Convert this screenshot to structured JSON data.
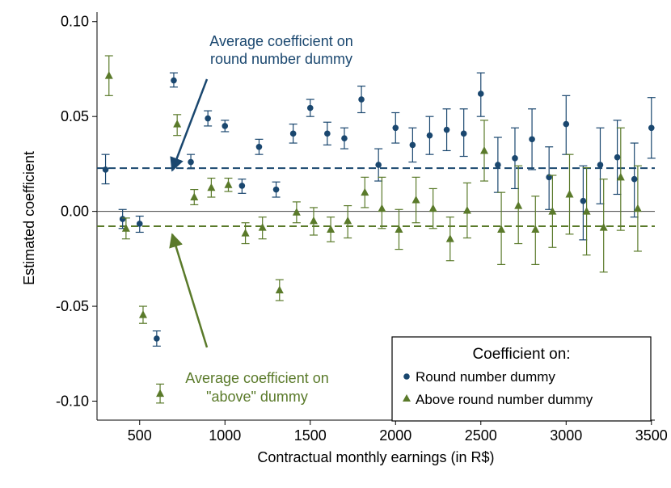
{
  "chart_data": {
    "type": "scatter",
    "xlabel": "Contractual monthly earnings (in R$)",
    "ylabel": "Estimated coefficient",
    "xlim": [
      250,
      3520
    ],
    "ylim": [
      -0.11,
      0.105
    ],
    "x_ticks": [
      500,
      1000,
      1500,
      2000,
      2500,
      3000,
      3500
    ],
    "x_tick_labels": [
      "500",
      "1000",
      "1500",
      "2000",
      "2500",
      "3000",
      "3500"
    ],
    "y_ticks": [
      0.1,
      0.05,
      0.0,
      -0.05,
      -0.1
    ],
    "y_tick_labels": [
      "0.10",
      "0.05",
      "0.00",
      "-0.05",
      "-0.10"
    ],
    "zero_line": 0,
    "colors": {
      "round": "#1a476f",
      "above": "#5a7a2a"
    },
    "series": [
      {
        "name": "Round number dummy",
        "marker": "circle",
        "average": 0.0228,
        "points": [
          {
            "x": 300,
            "y": 0.022,
            "lo": 0.0145,
            "hi": 0.03
          },
          {
            "x": 400,
            "y": -0.004,
            "lo": -0.009,
            "hi": 0.001
          },
          {
            "x": 500,
            "y": -0.0065,
            "lo": -0.011,
            "hi": -0.0025
          },
          {
            "x": 600,
            "y": -0.067,
            "lo": -0.071,
            "hi": -0.063
          },
          {
            "x": 700,
            "y": 0.069,
            "lo": 0.0655,
            "hi": 0.073
          },
          {
            "x": 800,
            "y": 0.026,
            "lo": 0.0225,
            "hi": 0.03
          },
          {
            "x": 900,
            "y": 0.049,
            "lo": 0.045,
            "hi": 0.053
          },
          {
            "x": 1000,
            "y": 0.045,
            "lo": 0.042,
            "hi": 0.048
          },
          {
            "x": 1100,
            "y": 0.0135,
            "lo": 0.0095,
            "hi": 0.017
          },
          {
            "x": 1200,
            "y": 0.034,
            "lo": 0.03,
            "hi": 0.038
          },
          {
            "x": 1300,
            "y": 0.0115,
            "lo": 0.0075,
            "hi": 0.0155
          },
          {
            "x": 1400,
            "y": 0.041,
            "lo": 0.036,
            "hi": 0.046
          },
          {
            "x": 1500,
            "y": 0.0545,
            "lo": 0.05,
            "hi": 0.059
          },
          {
            "x": 1600,
            "y": 0.041,
            "lo": 0.035,
            "hi": 0.047
          },
          {
            "x": 1700,
            "y": 0.0385,
            "lo": 0.033,
            "hi": 0.044
          },
          {
            "x": 1800,
            "y": 0.059,
            "lo": 0.052,
            "hi": 0.066
          },
          {
            "x": 1900,
            "y": 0.0245,
            "lo": 0.016,
            "hi": 0.033
          },
          {
            "x": 2000,
            "y": 0.044,
            "lo": 0.036,
            "hi": 0.052
          },
          {
            "x": 2100,
            "y": 0.035,
            "lo": 0.026,
            "hi": 0.044
          },
          {
            "x": 2200,
            "y": 0.04,
            "lo": 0.03,
            "hi": 0.05
          },
          {
            "x": 2300,
            "y": 0.043,
            "lo": 0.032,
            "hi": 0.054
          },
          {
            "x": 2400,
            "y": 0.041,
            "lo": 0.029,
            "hi": 0.054
          },
          {
            "x": 2500,
            "y": 0.062,
            "lo": 0.05,
            "hi": 0.073
          },
          {
            "x": 2600,
            "y": 0.0245,
            "lo": 0.01,
            "hi": 0.039
          },
          {
            "x": 2700,
            "y": 0.028,
            "lo": 0.012,
            "hi": 0.044
          },
          {
            "x": 2800,
            "y": 0.038,
            "lo": 0.022,
            "hi": 0.054
          },
          {
            "x": 2900,
            "y": 0.018,
            "lo": 0.001,
            "hi": 0.034
          },
          {
            "x": 3000,
            "y": 0.046,
            "lo": 0.03,
            "hi": 0.061
          },
          {
            "x": 3100,
            "y": 0.0055,
            "lo": -0.015,
            "hi": 0.024
          },
          {
            "x": 3200,
            "y": 0.0245,
            "lo": 0.004,
            "hi": 0.044
          },
          {
            "x": 3300,
            "y": 0.0285,
            "lo": 0.009,
            "hi": 0.048
          },
          {
            "x": 3400,
            "y": 0.017,
            "lo": -0.003,
            "hi": 0.036
          },
          {
            "x": 3500,
            "y": 0.044,
            "lo": 0.028,
            "hi": 0.06
          }
        ]
      },
      {
        "name": "Above round number dummy",
        "marker": "triangle",
        "average": -0.0078,
        "points": [
          {
            "x": 320,
            "y": 0.0715,
            "lo": 0.061,
            "hi": 0.082
          },
          {
            "x": 420,
            "y": -0.009,
            "lo": -0.0145,
            "hi": -0.0035
          },
          {
            "x": 520,
            "y": -0.0545,
            "lo": -0.059,
            "hi": -0.05
          },
          {
            "x": 620,
            "y": -0.096,
            "lo": -0.101,
            "hi": -0.091
          },
          {
            "x": 720,
            "y": 0.046,
            "lo": 0.04,
            "hi": 0.051
          },
          {
            "x": 820,
            "y": 0.0075,
            "lo": 0.0035,
            "hi": 0.0115
          },
          {
            "x": 920,
            "y": 0.0125,
            "lo": 0.0075,
            "hi": 0.0175
          },
          {
            "x": 1020,
            "y": 0.014,
            "lo": 0.0105,
            "hi": 0.0175
          },
          {
            "x": 1120,
            "y": -0.0115,
            "lo": -0.017,
            "hi": -0.006
          },
          {
            "x": 1220,
            "y": -0.0085,
            "lo": -0.0145,
            "hi": -0.003
          },
          {
            "x": 1320,
            "y": -0.0415,
            "lo": -0.047,
            "hi": -0.036
          },
          {
            "x": 1420,
            "y": -0.0005,
            "lo": -0.006,
            "hi": 0.005
          },
          {
            "x": 1520,
            "y": -0.005,
            "lo": -0.0125,
            "hi": 0.002
          },
          {
            "x": 1620,
            "y": -0.0095,
            "lo": -0.016,
            "hi": -0.003
          },
          {
            "x": 1720,
            "y": -0.005,
            "lo": -0.014,
            "hi": 0.003
          },
          {
            "x": 1820,
            "y": 0.01,
            "lo": 0.002,
            "hi": 0.018
          },
          {
            "x": 1920,
            "y": 0.0015,
            "lo": -0.009,
            "hi": 0.018
          },
          {
            "x": 2020,
            "y": -0.0095,
            "lo": -0.02,
            "hi": 0.001
          },
          {
            "x": 2120,
            "y": 0.006,
            "lo": -0.006,
            "hi": 0.018
          },
          {
            "x": 2220,
            "y": 0.0015,
            "lo": -0.009,
            "hi": 0.012
          },
          {
            "x": 2320,
            "y": -0.0145,
            "lo": -0.026,
            "hi": -0.003
          },
          {
            "x": 2420,
            "y": 0.0005,
            "lo": -0.014,
            "hi": 0.015
          },
          {
            "x": 2520,
            "y": 0.032,
            "lo": 0.016,
            "hi": 0.048
          },
          {
            "x": 2620,
            "y": -0.0095,
            "lo": -0.028,
            "hi": 0.01
          },
          {
            "x": 2720,
            "y": 0.003,
            "lo": -0.017,
            "hi": 0.024
          },
          {
            "x": 2820,
            "y": -0.0095,
            "lo": -0.028,
            "hi": 0.008
          },
          {
            "x": 2920,
            "y": 0.0,
            "lo": -0.019,
            "hi": 0.019
          },
          {
            "x": 3020,
            "y": 0.009,
            "lo": -0.012,
            "hi": 0.03
          },
          {
            "x": 3120,
            "y": 0.0,
            "lo": -0.023,
            "hi": 0.023
          },
          {
            "x": 3220,
            "y": -0.0085,
            "lo": -0.032,
            "hi": 0.017
          },
          {
            "x": 3320,
            "y": 0.018,
            "lo": -0.01,
            "hi": 0.044
          },
          {
            "x": 3420,
            "y": 0.0015,
            "lo": -0.021,
            "hi": 0.024
          }
        ]
      }
    ],
    "annotations": [
      {
        "id": "round",
        "lines": [
          "Average coefficient on",
          "round number dummy"
        ]
      },
      {
        "id": "above",
        "lines": [
          "Average coefficient on",
          "\"above\" dummy"
        ]
      }
    ],
    "legend": {
      "title": "Coefficient on:",
      "position": "bottom-right",
      "items": [
        "Round number dummy",
        "Above round number dummy"
      ]
    }
  }
}
